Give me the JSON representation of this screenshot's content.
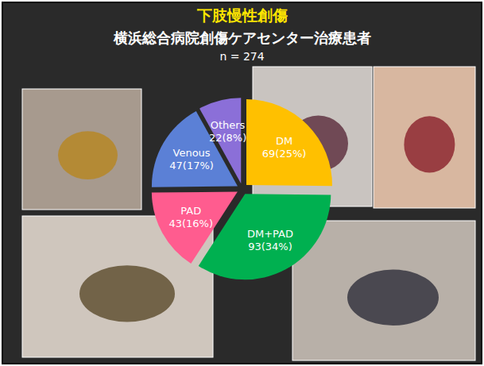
{
  "chart_data": {
    "type": "pie",
    "title": "下肢慢性創傷",
    "subtitle": "横浜総合病院創傷ケアセンター治療患者",
    "annotations": [
      "n = 274"
    ],
    "categories": [
      "DM",
      "DM+PAD",
      "PAD",
      "Venous",
      "Others"
    ],
    "values": [
      69,
      93,
      43,
      47,
      22
    ],
    "value_labels": [
      "69(25%)",
      "93(34%)",
      "43(16%)",
      "47(17%)",
      "22(8%)"
    ],
    "colors": [
      "#ffc000",
      "#00b050",
      "#ff5c8f",
      "#5b80d6",
      "#8b6fd8"
    ],
    "data_labels": true,
    "legend": false
  }
}
